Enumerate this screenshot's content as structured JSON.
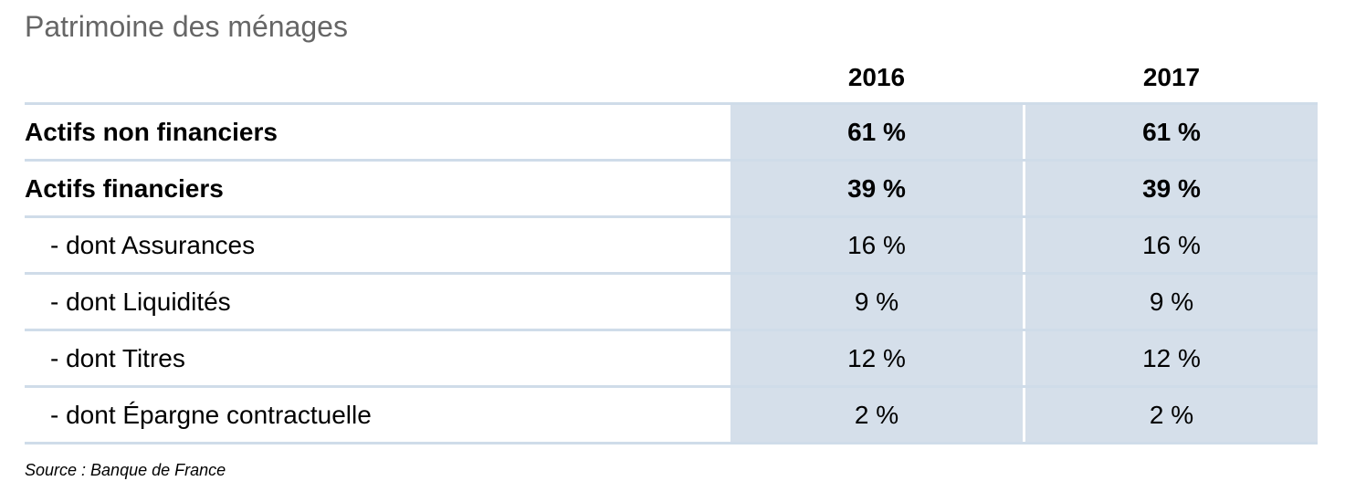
{
  "title": "Patrimoine des ménages",
  "columns": [
    "2016",
    "2017"
  ],
  "rows": [
    {
      "label": "Actifs non financiers",
      "v2016": "61 %",
      "v2017": "61 %",
      "bold": true,
      "indent": false
    },
    {
      "label": "Actifs financiers",
      "v2016": "39 %",
      "v2017": "39 %",
      "bold": true,
      "indent": false
    },
    {
      "label": "- dont Assurances",
      "v2016": "16 %",
      "v2017": "16 %",
      "bold": false,
      "indent": true
    },
    {
      "label": "- dont Liquidités",
      "v2016": "9 %",
      "v2017": "9 %",
      "bold": false,
      "indent": true
    },
    {
      "label": "- dont Titres",
      "v2016": "12 %",
      "v2017": "12 %",
      "bold": false,
      "indent": true
    },
    {
      "label": "- dont Épargne contractuelle",
      "v2016": "2 %",
      "v2017": "2 %",
      "bold": false,
      "indent": true
    }
  ],
  "source": "Source : Banque de France",
  "colors": {
    "title": "#666666",
    "cell_fill": "#d5dfea",
    "divider": "#cfdce9"
  }
}
